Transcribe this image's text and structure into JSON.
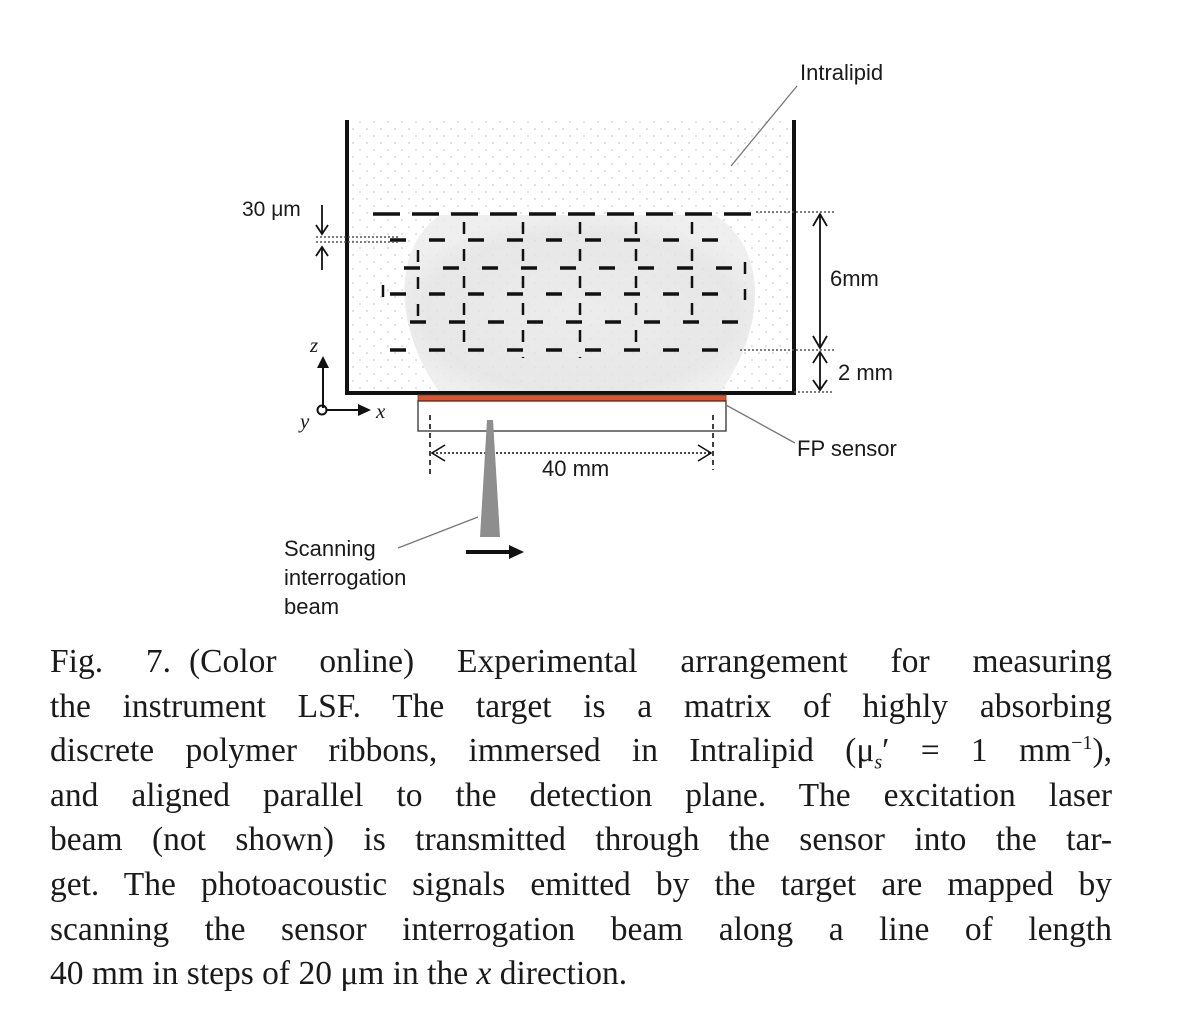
{
  "figure": {
    "labels": {
      "intralipid": "Intralipid",
      "pitch": "30 μm",
      "depth_6mm": "6mm",
      "depth_2mm": "2 mm",
      "fp_sensor": "FP sensor",
      "scan_length": "40 mm",
      "beam_line1": "Scanning",
      "beam_line2": "interrogation",
      "beam_line3": "beam",
      "axis_z": "z",
      "axis_x": "x",
      "axis_y": "y"
    },
    "colors": {
      "sensor": "#d9542b",
      "beam": "#8e8e8e",
      "tank_walls": "#111111",
      "ribbons": "#111111",
      "intralipid_glow": "#e6e6e6"
    }
  },
  "caption": {
    "fig_label": "Fig. 7.",
    "line1_rest": "(Color online) Experimental arrangement for measuring",
    "line2": "the instrument LSF. The target is a matrix of highly absorbing",
    "line3_a": "discrete polymer ribbons, immersed in Intralipid (μ",
    "line3_sub": "s",
    "line3_b": "′ = 1 mm",
    "line3_sup": "−1",
    "line3_c": "),",
    "line4": "and aligned parallel to the detection plane. The excitation laser",
    "line5": "beam (not shown) is transmitted through the sensor into the tar-",
    "line6": "get. The photoacoustic signals emitted by the target are mapped by",
    "line7": "scanning the sensor interrogation beam along a line of length",
    "line8_a": "40 mm in steps of 20 μm in the",
    "line8_x": "x",
    "line8_b": "direction."
  }
}
